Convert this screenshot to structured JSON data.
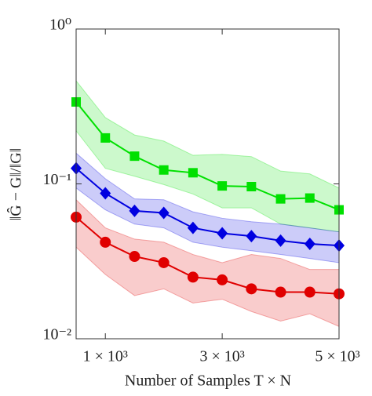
{
  "chart_data": {
    "type": "line",
    "xlabel": "Number of Samples T × N",
    "ylabel": "‖Ĝ − G‖/‖G‖",
    "x": [
      500,
      1000,
      1500,
      2000,
      2500,
      3000,
      3500,
      4000,
      4500,
      5000
    ],
    "xlim": [
      500,
      5000
    ],
    "xticks": [
      {
        "value": 1000,
        "label": "1 × 10³"
      },
      {
        "value": 3000,
        "label": "3 × 10³"
      },
      {
        "value": 5000,
        "label": "5 × 10³"
      }
    ],
    "ylim": [
      0.01,
      1
    ],
    "ylog": true,
    "yticks": [
      {
        "value": 0.01,
        "label": "10⁻²"
      },
      {
        "value": 0.1,
        "label": "10⁻¹"
      },
      {
        "value": 1,
        "label": "10⁰"
      }
    ],
    "series": [
      {
        "color": "#00e000",
        "marker": "square",
        "values": [
          0.338,
          0.198,
          0.151,
          0.123,
          0.118,
          0.097,
          0.096,
          0.08,
          0.081,
          0.068
        ],
        "upper": [
          0.463,
          0.268,
          0.207,
          0.189,
          0.153,
          0.155,
          0.15,
          0.121,
          0.116,
          0.094
        ],
        "lower": [
          0.22,
          0.126,
          0.112,
          0.099,
          0.086,
          0.07,
          0.07,
          0.055,
          0.052,
          0.049
        ]
      },
      {
        "color": "#0000e0",
        "marker": "diamond",
        "values": [
          0.126,
          0.087,
          0.067,
          0.065,
          0.052,
          0.048,
          0.046,
          0.043,
          0.041,
          0.04
        ],
        "upper": [
          0.158,
          0.108,
          0.08,
          0.079,
          0.066,
          0.06,
          0.057,
          0.055,
          0.052,
          0.049
        ],
        "lower": [
          0.094,
          0.068,
          0.055,
          0.052,
          0.042,
          0.039,
          0.037,
          0.035,
          0.033,
          0.031
        ]
      },
      {
        "color": "#e00000",
        "marker": "circle",
        "values": [
          0.061,
          0.042,
          0.034,
          0.031,
          0.025,
          0.024,
          0.021,
          0.02,
          0.02,
          0.0195
        ],
        "upper": [
          0.079,
          0.052,
          0.044,
          0.042,
          0.035,
          0.031,
          0.035,
          0.033,
          0.028,
          0.028
        ],
        "lower": [
          0.039,
          0.026,
          0.019,
          0.021,
          0.017,
          0.018,
          0.015,
          0.013,
          0.0145,
          0.012
        ]
      }
    ]
  }
}
